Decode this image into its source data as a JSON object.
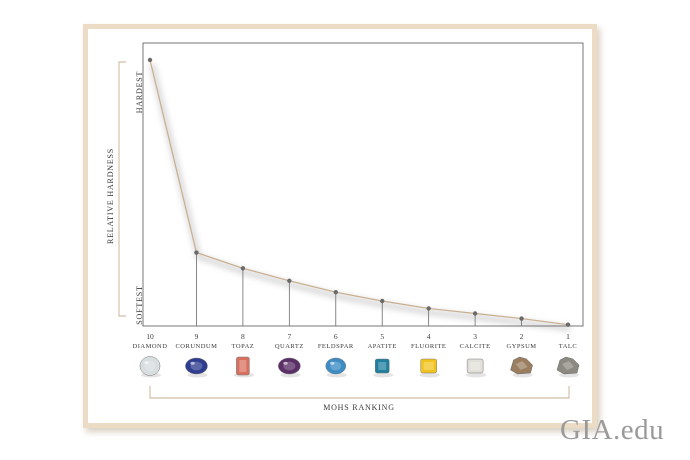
{
  "chart_data": {
    "type": "line",
    "xlabel": "MOHS RANKING",
    "ylabel": "RELATIVE HARDNESS",
    "y_top_label": "HARDEST",
    "y_bottom_label": "SOFTEST",
    "minerals": [
      {
        "rank": "10",
        "name": "DIAMOND",
        "hardness": 100,
        "color": "#d8dde0"
      },
      {
        "rank": "9",
        "name": "CORUNDUM",
        "hardness": 27.6,
        "color": "#2f3d8f"
      },
      {
        "rank": "8",
        "name": "TOPAZ",
        "hardness": 21.7,
        "color": "#d9705f"
      },
      {
        "rank": "7",
        "name": "QUARTZ",
        "hardness": 17.0,
        "color": "#5a2e66"
      },
      {
        "rank": "6",
        "name": "FELDSPAR",
        "hardness": 12.7,
        "color": "#3d8cc4"
      },
      {
        "rank": "5",
        "name": "APATITE",
        "hardness": 9.4,
        "color": "#1f7f9e"
      },
      {
        "rank": "4",
        "name": "FLUORITE",
        "hardness": 6.6,
        "color": "#f2c31c"
      },
      {
        "rank": "3",
        "name": "CALCITE",
        "hardness": 4.7,
        "color": "#e2dfd8"
      },
      {
        "rank": "2",
        "name": "GYPSUM",
        "hardness": 2.8,
        "color": "#9a7e5f"
      },
      {
        "rank": "1",
        "name": "TALC",
        "hardness": 0.5,
        "color": "#8c8a80"
      }
    ],
    "ylim": [
      0,
      100
    ],
    "line_color": "#c9ad8c",
    "frame_color": "#ecdcc5"
  },
  "watermark": "GIA.edu"
}
